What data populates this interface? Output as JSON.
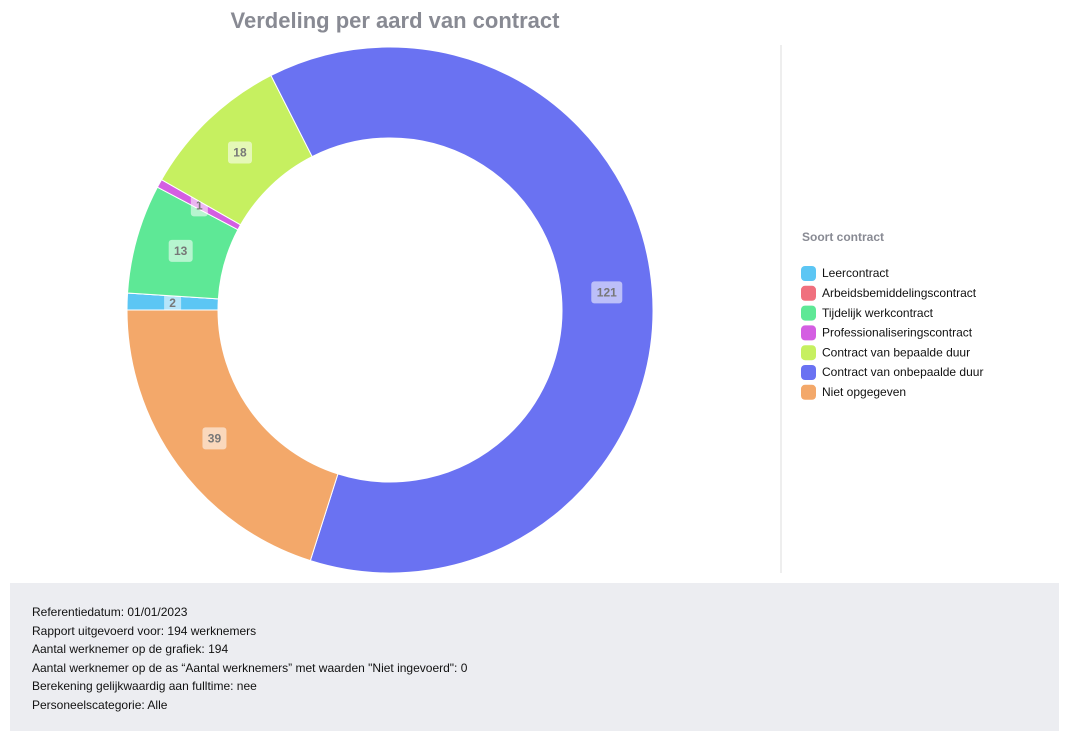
{
  "chart_data": {
    "type": "donut",
    "title": "Verdeling per aard van contract",
    "legend_title": "Soort contract",
    "categories": [
      "Leercontract",
      "Arbeidsbemiddelingscontract",
      "Tijdelijk werkcontract",
      "Professionaliseringscontract",
      "Contract van bepaalde duur",
      "Contract van onbepaalde duur",
      "Niet opgegeven"
    ],
    "values": [
      2,
      0,
      13,
      1,
      18,
      121,
      39
    ],
    "colors": [
      "#5cc6f4",
      "#f0707e",
      "#5ee896",
      "#d45ee2",
      "#c6f060",
      "#6a72f2",
      "#f3a86a"
    ],
    "legend_position": "right"
  },
  "footer": {
    "lines": [
      "Referentiedatum: 01/01/2023",
      "Rapport uitgevoerd voor: 194 werknemers",
      "Aantal werknemer op de grafiek: 194",
      "Aantal werknemer op de as “Aantal werknemers” met waarden \"Niet ingevoerd\": 0",
      "Berekening gelijkwaardig aan fulltime: nee",
      "Personeelscategorie: Alle"
    ]
  }
}
